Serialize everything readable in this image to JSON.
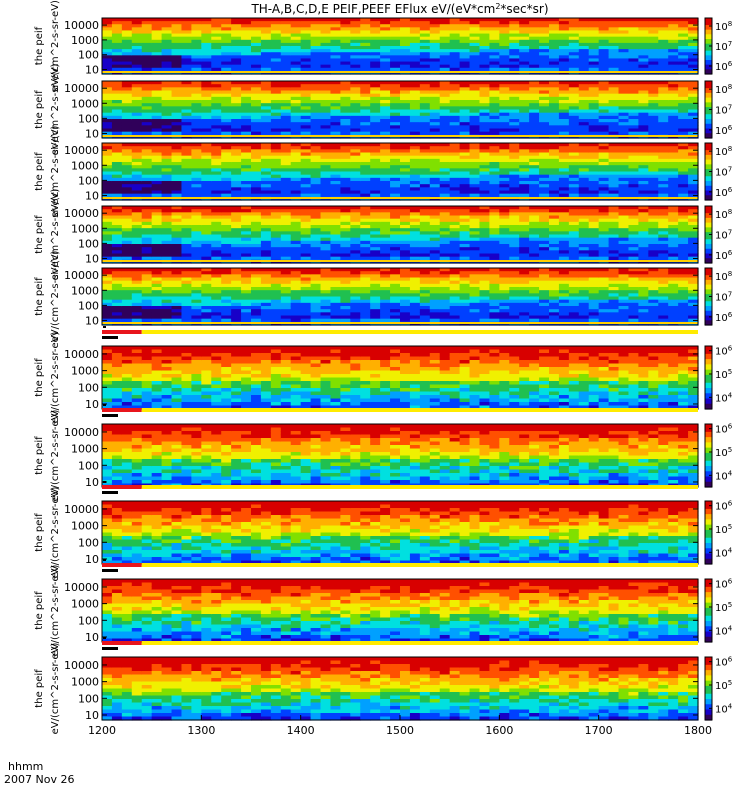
{
  "chart_data": {
    "type": "heatmap",
    "title": "TH-A,B,C,D,E PEIF,PEEF EFlux eV/(eV*cm^2*sec*sr)",
    "x_ticks": [
      "1200",
      "1300",
      "1400",
      "1500",
      "1600",
      "1700",
      "1800"
    ],
    "xlim": [
      1200,
      1800
    ],
    "x_axis_label": "hhmm",
    "date_label": "2007 Nov 26",
    "y_scale": "log",
    "y_ticks": [
      "10",
      "100",
      "1000",
      "10000"
    ],
    "panels": [
      {
        "label": "the peif",
        "units": "eV/(cm^2-s-sr-eV)",
        "colorbar_ticks": [
          "10^6",
          "10^7",
          "10^8"
        ],
        "colorbar_log_range": [
          5.6,
          8.4
        ],
        "species": "ion"
      },
      {
        "label": "the peif",
        "units": "eV/(cm^2-s-sr-eV)",
        "colorbar_ticks": [
          "10^6",
          "10^7",
          "10^8"
        ],
        "colorbar_log_range": [
          5.6,
          8.4
        ],
        "species": "ion"
      },
      {
        "label": "the peif",
        "units": "eV/(cm^2-s-sr-eV)",
        "colorbar_ticks": [
          "10^6",
          "10^7",
          "10^8"
        ],
        "colorbar_log_range": [
          5.6,
          8.4
        ],
        "species": "ion"
      },
      {
        "label": "the peif",
        "units": "eV/(cm^2-s-sr-eV)",
        "colorbar_ticks": [
          "10^6",
          "10^7",
          "10^8"
        ],
        "colorbar_log_range": [
          5.6,
          8.4
        ],
        "species": "ion"
      },
      {
        "label": "the peif",
        "units": "eV/(cm^2-s-sr-eV)",
        "colorbar_ticks": [
          "10^6",
          "10^7",
          "10^8"
        ],
        "colorbar_log_range": [
          5.6,
          8.4
        ],
        "species": "ion"
      },
      {
        "label": "the peif",
        "units": "eV/(cm^2-s-sr-eV)",
        "colorbar_ticks": [
          "10^4",
          "10^5",
          "10^6"
        ],
        "colorbar_log_range": [
          3.5,
          6.2
        ],
        "species": "electron"
      },
      {
        "label": "the peif",
        "units": "eV/(cm^2-s-sr-eV)",
        "colorbar_ticks": [
          "10^4",
          "10^5",
          "10^6"
        ],
        "colorbar_log_range": [
          3.5,
          6.2
        ],
        "species": "electron"
      },
      {
        "label": "the peif",
        "units": "eV/(cm^2-s-sr-eV)",
        "colorbar_ticks": [
          "10^4",
          "10^5",
          "10^6"
        ],
        "colorbar_log_range": [
          3.5,
          6.2
        ],
        "species": "electron"
      },
      {
        "label": "the peif",
        "units": "eV/(cm^2-s-sr-eV)",
        "colorbar_ticks": [
          "10^4",
          "10^5",
          "10^6"
        ],
        "colorbar_log_range": [
          3.5,
          6.2
        ],
        "species": "electron"
      },
      {
        "label": "the peif",
        "units": "eV/(cm^2-s-sr-eV)",
        "colorbar_ticks": [
          "10^4",
          "10^5",
          "10^6"
        ],
        "colorbar_log_range": [
          3.5,
          6.2
        ],
        "species": "electron"
      }
    ],
    "spectrogram_description": "ion panels: yellow-red flux at high energy, green mid-energy, blue/dark at low energy with dark band near 1200-1270; electron panels: red at high energy decreasing to blue/cyan at low energy",
    "status_bars": {
      "flag_end": 1240,
      "colors": [
        "#e8151c",
        "#ffeb00",
        "#000000"
      ]
    }
  },
  "colors": {
    "ion_palette": [
      "#30005a",
      "#1800c8",
      "#0040ff",
      "#00a0ff",
      "#00e0e0",
      "#20c050",
      "#80e000",
      "#f0f000",
      "#ffb000",
      "#ff5000",
      "#d80000"
    ]
  }
}
